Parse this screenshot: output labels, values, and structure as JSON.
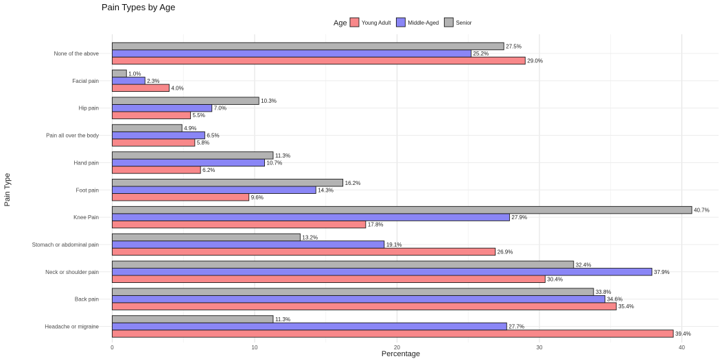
{
  "chart_data": {
    "type": "bar",
    "orientation": "horizontal",
    "title": "Pain Types by Age",
    "xlabel": "Percentage",
    "ylabel": "Pain Type",
    "xlim": [
      0,
      42
    ],
    "xticks": [
      0,
      10,
      20,
      30,
      40
    ],
    "grid": true,
    "legend": {
      "title": "Age",
      "position": "top"
    },
    "categories": [
      "None of the above",
      "Facial pain",
      "Hip pain",
      "Pain all over the body",
      "Hand pain",
      "Foot pain",
      "Knee Pain",
      "Stomach or abdominal pain",
      "Neck or shoulder pain",
      "Back pain",
      "Headache or migraine"
    ],
    "series": [
      {
        "name": "Young Adult",
        "color": "#f8888a",
        "values": [
          29.0,
          4.0,
          5.5,
          5.8,
          6.2,
          9.6,
          17.8,
          26.9,
          30.4,
          35.4,
          39.4
        ],
        "labels": [
          "29.0%",
          "4.0%",
          "5.5%",
          "5.8%",
          "6.2%",
          "9.6%",
          "17.8%",
          "26.9%",
          "30.4%",
          "35.4%",
          "39.4%"
        ]
      },
      {
        "name": "Middle-Aged",
        "color": "#8a86f6",
        "values": [
          25.2,
          2.3,
          7.0,
          6.5,
          10.7,
          14.3,
          27.9,
          19.1,
          37.9,
          34.6,
          27.7
        ],
        "labels": [
          "25.2%",
          "2.3%",
          "7.0%",
          "6.5%",
          "10.7%",
          "14.3%",
          "27.9%",
          "19.1%",
          "37.9%",
          "34.6%",
          "27.7%"
        ]
      },
      {
        "name": "Senior",
        "color": "#b3b3b3",
        "values": [
          27.5,
          1.0,
          10.3,
          4.9,
          11.3,
          16.2,
          40.7,
          13.2,
          32.4,
          33.8,
          11.3
        ],
        "labels": [
          "27.5%",
          "1.0%",
          "10.3%",
          "4.9%",
          "11.3%",
          "16.2%",
          "40.7%",
          "13.2%",
          "32.4%",
          "33.8%",
          "11.3%"
        ]
      }
    ]
  }
}
